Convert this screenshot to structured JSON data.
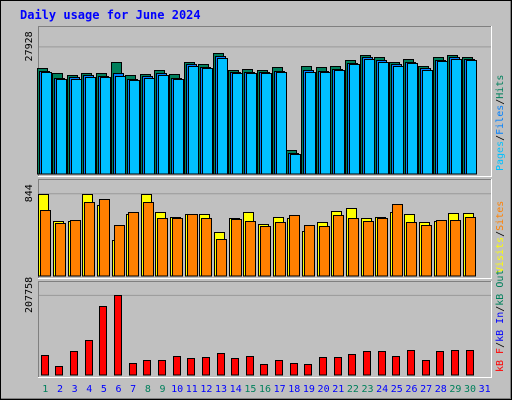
{
  "colors": {
    "background": "#c0c0c0",
    "frame_dark": "#808080",
    "frame_light": "#ffffff",
    "gridline": "#999999",
    "title": "#0000ff",
    "hits": "#00805c",
    "files": "#0080ff",
    "files_highlight": "#00c0ff",
    "pages": "#00c0ff",
    "visits": "#ffff00",
    "sites": "#ff8000",
    "kb_total": "#ff0000",
    "kb_in": "#0000ff",
    "kb_out": "#00805c",
    "weekend_label": "#00805c",
    "weekday_label": "#0000ff"
  },
  "chart_data": {
    "type": "bar",
    "title": "Daily usage for June 2024",
    "x": [
      "1",
      "2",
      "3",
      "4",
      "5",
      "6",
      "7",
      "8",
      "9",
      "10",
      "11",
      "12",
      "13",
      "14",
      "15",
      "16",
      "17",
      "18",
      "19",
      "20",
      "21",
      "22",
      "23",
      "24",
      "25",
      "26",
      "27",
      "28",
      "29",
      "30",
      "31"
    ],
    "weekend_days": [
      "1",
      "8",
      "9",
      "15",
      "16",
      "22",
      "23",
      "29",
      "30"
    ],
    "panels": [
      {
        "name": "hits-files-pages",
        "ymax_label": "27928",
        "ymax": 27928,
        "legend": [
          "Pages",
          "/",
          "Files",
          "/",
          "Hits"
        ],
        "series": [
          {
            "name": "Hits",
            "values": [
              23200,
              22000,
              21700,
              22100,
              22000,
              24500,
              21600,
              21800,
              22700,
              21800,
              24600,
              24100,
              26500,
              22800,
              22900,
              22800,
              23400,
              5200,
              23600,
              23400,
              23700,
              25000,
              26000,
              25600,
              24600,
              25100,
              23600,
              25600,
              26000,
              25700,
              0
            ]
          },
          {
            "name": "Files",
            "values": [
              22600,
              21100,
              21200,
              21600,
              21500,
              22100,
              20800,
              21400,
              22100,
              21100,
              24000,
              23500,
              25800,
              22300,
              22300,
              22300,
              22600,
              4600,
              22800,
              22600,
              23000,
              24300,
              25500,
              24900,
              24000,
              24600,
              23100,
              25000,
              25500,
              25200,
              0
            ]
          },
          {
            "name": "Pages",
            "values": [
              22300,
              20800,
              20900,
              21300,
              21200,
              21500,
              20600,
              21100,
              21700,
              20700,
              23600,
              23100,
              25400,
              22000,
              22000,
              22000,
              22300,
              4300,
              22400,
              22300,
              22700,
              24000,
              25100,
              24600,
              23600,
              24300,
              22800,
              24700,
              25200,
              24900,
              0
            ]
          }
        ]
      },
      {
        "name": "visits-sites",
        "ymax_label": "844",
        "ymax": 844,
        "legend": [
          "Visits",
          "/",
          "Sites"
        ],
        "series": [
          {
            "name": "Visits",
            "values": [
              840,
              560,
              560,
              840,
              720,
              370,
              630,
              840,
              650,
              600,
              630,
              630,
              450,
              590,
              650,
              530,
              600,
              590,
              460,
              550,
              660,
              690,
              590,
              600,
              650,
              630,
              550,
              560,
              640,
              640,
              0
            ]
          },
          {
            "name": "Sites",
            "values": [
              670,
              540,
              570,
              760,
              790,
              520,
              650,
              760,
              590,
              590,
              630,
              590,
              380,
              580,
              560,
              510,
              550,
              620,
              520,
              510,
              620,
              590,
              560,
              590,
              730,
              550,
              520,
              570,
              570,
              600,
              0
            ]
          }
        ]
      },
      {
        "name": "kbytes",
        "ymax_label": "207758",
        "ymax": 207758,
        "legend": [
          "kB F",
          "/",
          "kB In",
          "/",
          "kB Out"
        ],
        "series": [
          {
            "name": "kB F",
            "values": [
              52000,
              24000,
              62000,
              90000,
              178000,
              207758,
              32000,
              40000,
              40000,
              48000,
              44000,
              46000,
              58000,
              44000,
              48000,
              28000,
              40000,
              30000,
              28000,
              46000,
              46000,
              54000,
              62000,
              62000,
              50000,
              66000,
              38000,
              62000,
              64000,
              64000,
              0
            ]
          }
        ]
      }
    ]
  }
}
